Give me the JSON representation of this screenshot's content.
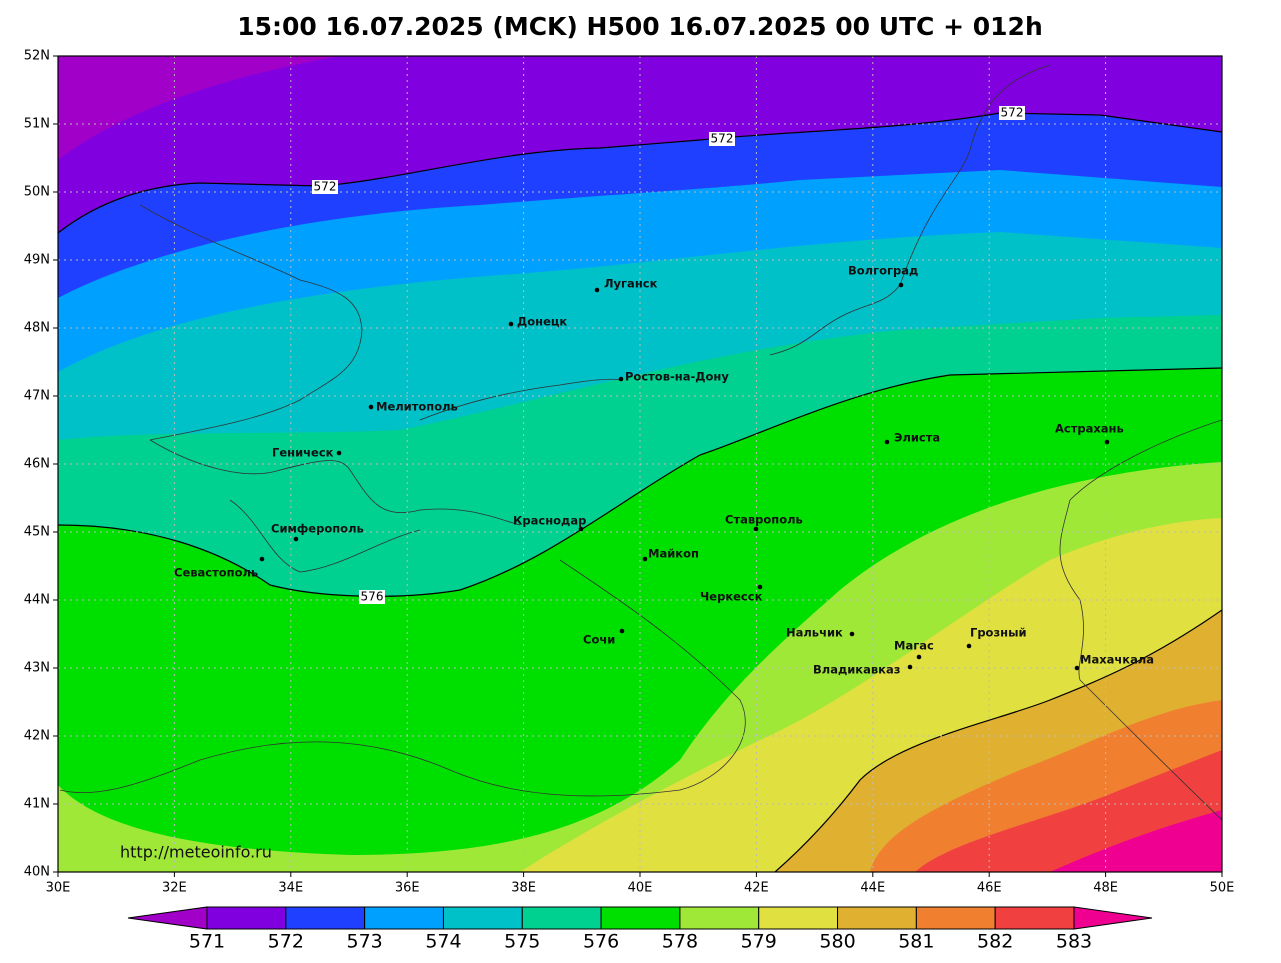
{
  "title": "15:00 16.07.2025 (MCK) H500  16.07.2025 00 UTC + 012h",
  "lon_labels": [
    "30E",
    "32E",
    "34E",
    "36E",
    "38E",
    "40E",
    "42E",
    "44E",
    "46E",
    "48E",
    "50E"
  ],
  "lat_labels": [
    "52N",
    "51N",
    "50N",
    "49N",
    "48N",
    "47N",
    "46N",
    "45N",
    "44N",
    "43N",
    "42N",
    "41N",
    "40N"
  ],
  "contour_labels": [
    "572",
    "572",
    "572",
    "576"
  ],
  "cities": [
    "Луганск",
    "Донецк",
    "Волгоград",
    "Ростов-на-Дону",
    "Мелитополь",
    "Геническ",
    "Элиста",
    "Астрахань",
    "Симферополь",
    "Севастополь",
    "Краснодар",
    "Ставрополь",
    "Майкоп",
    "Черкесск",
    "Сочи",
    "Нальчик",
    "Магас",
    "Владикавказ",
    "Грозный",
    "Махачкала"
  ],
  "colorbar": [
    571,
    572,
    573,
    574,
    575,
    576,
    578,
    579,
    580,
    581,
    582,
    583
  ],
  "watermark": "http://meteoinfo.ru"
}
